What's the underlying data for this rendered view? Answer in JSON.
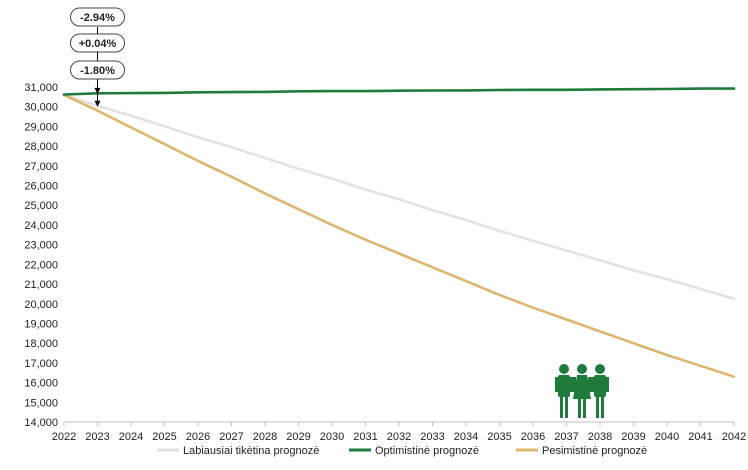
{
  "chart_data": {
    "type": "line",
    "x": [
      2022,
      2023,
      2024,
      2025,
      2026,
      2027,
      2028,
      2029,
      2030,
      2031,
      2032,
      2033,
      2034,
      2035,
      2036,
      2037,
      2038,
      2039,
      2040,
      2041,
      2042
    ],
    "ylim": [
      14000,
      31000
    ],
    "ytick_step": 1000,
    "grid": false,
    "legend_position": "bottom",
    "series": [
      {
        "name": "Labiausiai tikėtina prognozė",
        "color": "#e2e2e2",
        "values": [
          30600,
          30050,
          29550,
          29000,
          28450,
          27950,
          27400,
          26850,
          26350,
          25800,
          25300,
          24750,
          24250,
          23700,
          23200,
          22700,
          22200,
          21700,
          21250,
          20750,
          20250
        ]
      },
      {
        "name": "Optimistinė prognozė",
        "color": "#1e7b3c",
        "values": [
          30620,
          30680,
          30690,
          30700,
          30730,
          30740,
          30750,
          30780,
          30790,
          30790,
          30810,
          30820,
          30830,
          30850,
          30860,
          30860,
          30880,
          30890,
          30900,
          30920,
          30920
        ]
      },
      {
        "name": "Pesimistinė prognozė",
        "color": "#ddb56f",
        "values": [
          30600,
          29800,
          28950,
          28100,
          27250,
          26450,
          25600,
          24800,
          24000,
          23250,
          22550,
          21850,
          21150,
          20450,
          19800,
          19200,
          18600,
          18000,
          17400,
          16850,
          16300
        ]
      }
    ],
    "annotations": [
      {
        "label": "-2.94%"
      },
      {
        "label": "+0.04%"
      },
      {
        "label": "-1.80%"
      }
    ],
    "icon": "people-group-icon",
    "icon_color": "#1e7b3c"
  }
}
